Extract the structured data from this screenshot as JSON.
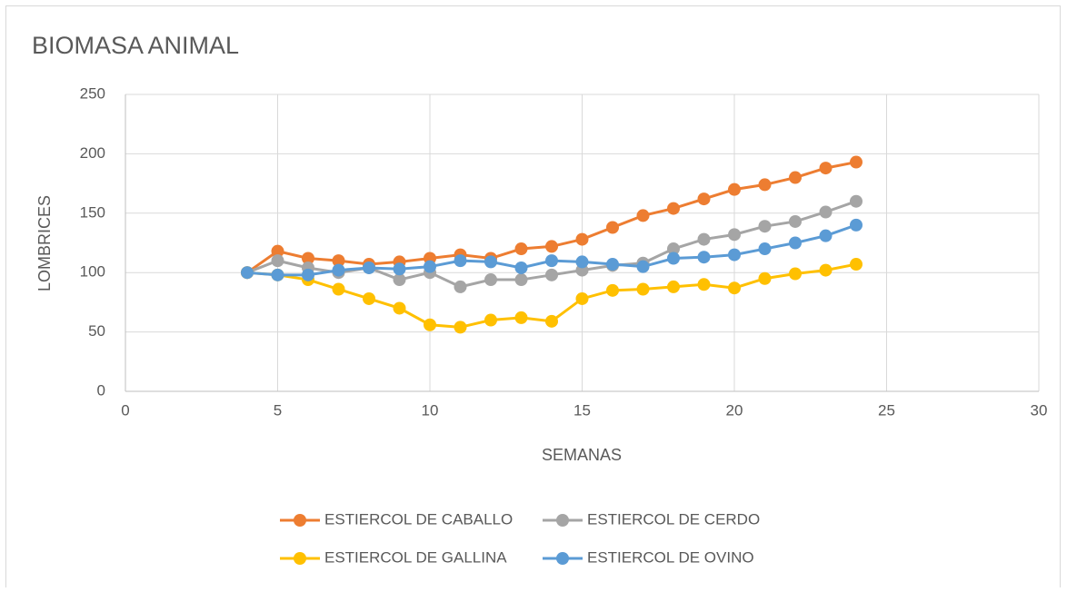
{
  "chart_data": {
    "type": "line",
    "title": "BIOMASA ANIMAL",
    "xlabel": "SEMANAS",
    "ylabel": "LOMBRICES",
    "x": [
      4,
      5,
      6,
      7,
      8,
      9,
      10,
      11,
      12,
      13,
      14,
      15,
      16,
      17,
      18,
      19,
      20,
      21,
      22,
      23,
      24
    ],
    "series": [
      {
        "name": "ESTIERCOL DE CABALLO",
        "color": "#ed7d31",
        "values": [
          100,
          118,
          112,
          110,
          107,
          109,
          112,
          115,
          112,
          120,
          122,
          128,
          138,
          148,
          154,
          162,
          170,
          174,
          180,
          188,
          193
        ]
      },
      {
        "name": "ESTIERCOL DE CERDO",
        "color": "#a5a5a5",
        "values": [
          100,
          110,
          104,
          100,
          104,
          94,
          100,
          88,
          94,
          94,
          98,
          102,
          106,
          108,
          120,
          128,
          132,
          139,
          143,
          151,
          160
        ]
      },
      {
        "name": "ESTIERCOL DE GALLINA",
        "color": "#ffc000",
        "values": [
          100,
          98,
          94,
          86,
          78,
          70,
          56,
          54,
          60,
          62,
          59,
          78,
          85,
          86,
          88,
          90,
          87,
          95,
          99,
          102,
          107
        ]
      },
      {
        "name": "ESTIERCOL DE OVINO",
        "color": "#5b9bd5",
        "values": [
          100,
          98,
          98,
          102,
          104,
          103,
          105,
          110,
          109,
          104,
          110,
          109,
          107,
          105,
          112,
          113,
          115,
          120,
          125,
          131,
          140
        ]
      }
    ],
    "xlim": [
      0,
      30
    ],
    "xticks": [
      0,
      5,
      10,
      15,
      20,
      25,
      30
    ],
    "ylim": [
      0,
      250
    ],
    "yticks": [
      0,
      50,
      100,
      150,
      200,
      250
    ],
    "grid": true,
    "legend": "bottom"
  }
}
